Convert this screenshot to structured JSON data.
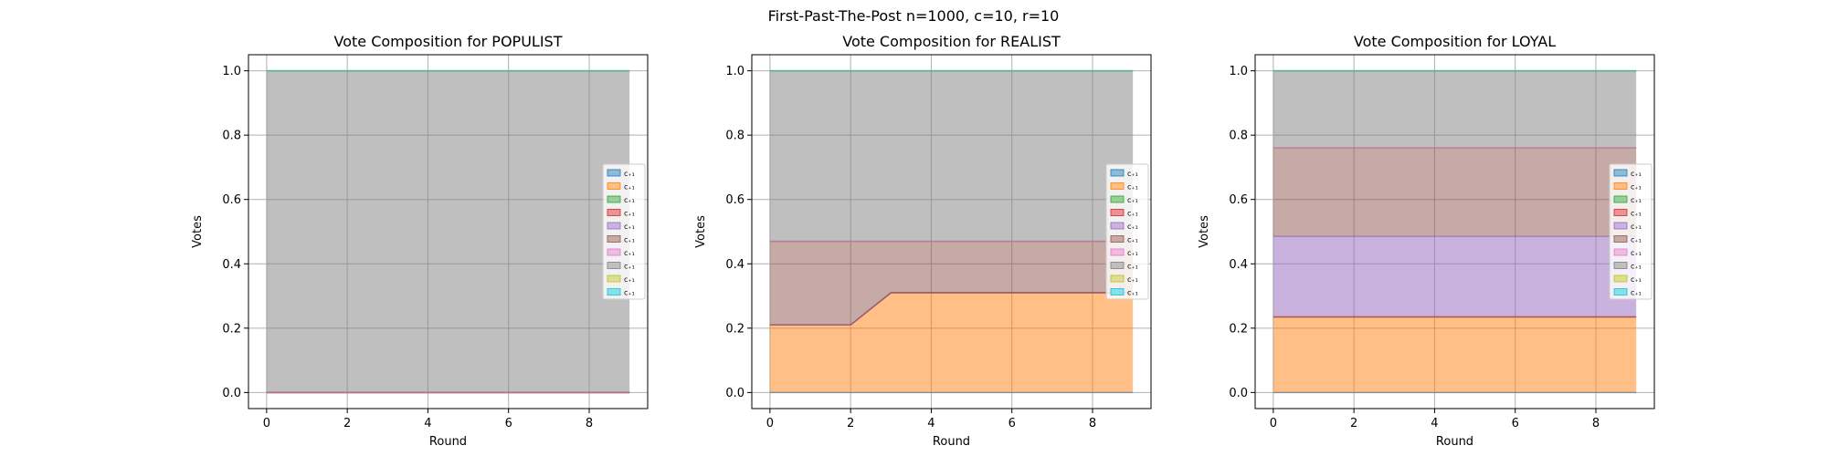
{
  "figure": {
    "suptitle": "First-Past-The-Post n=1000, c=10, r=10"
  },
  "legend_labels": [
    "c₊₁",
    "c₊₁",
    "c₊₁",
    "c₊₁",
    "c₊₁",
    "c₊₁",
    "c₊₁",
    "c₊₁",
    "c₊₁",
    "c₊₁"
  ],
  "colors": [
    "#1f77b4",
    "#ff7f0e",
    "#2ca02c",
    "#d62728",
    "#9467bd",
    "#8c564b",
    "#e377c2",
    "#7f7f7f",
    "#bcbd22",
    "#17becf"
  ],
  "chart_data": [
    {
      "type": "area",
      "stacked": true,
      "title": "Vote Composition for POPULIST",
      "xlabel": "Round",
      "ylabel": "Votes",
      "xlim": [
        -0.45,
        9.45
      ],
      "ylim": [
        -0.05,
        1.05
      ],
      "xticks": [
        "0",
        "2",
        "4",
        "6",
        "8"
      ],
      "yticks": [
        "0.0",
        "0.2",
        "0.4",
        "0.6",
        "0.8",
        "1.0"
      ],
      "grid": true,
      "legend": "center-right",
      "x": [
        0,
        1,
        2,
        3,
        4,
        5,
        6,
        7,
        8,
        9
      ],
      "series": [
        {
          "values": [
            0,
            0,
            0,
            0,
            0,
            0,
            0,
            0,
            0,
            0
          ]
        },
        {
          "values": [
            0,
            0,
            0,
            0,
            0,
            0,
            0,
            0,
            0,
            0
          ]
        },
        {
          "values": [
            0,
            0,
            0,
            0,
            0,
            0,
            0,
            0,
            0,
            0
          ]
        },
        {
          "values": [
            0,
            0,
            0,
            0,
            0,
            0,
            0,
            0,
            0,
            0
          ]
        },
        {
          "values": [
            0,
            0,
            0,
            0,
            0,
            0,
            0,
            0,
            0,
            0
          ]
        },
        {
          "values": [
            0,
            0,
            0,
            0,
            0,
            0,
            0,
            0,
            0,
            0
          ]
        },
        {
          "values": [
            0,
            0,
            0,
            0,
            0,
            0,
            0,
            0,
            0,
            0
          ]
        },
        {
          "values": [
            1,
            1,
            1,
            1,
            1,
            1,
            1,
            1,
            1,
            1
          ]
        },
        {
          "values": [
            0,
            0,
            0,
            0,
            0,
            0,
            0,
            0,
            0,
            0
          ]
        },
        {
          "values": [
            0,
            0,
            0,
            0,
            0,
            0,
            0,
            0,
            0,
            0
          ]
        }
      ]
    },
    {
      "type": "area",
      "stacked": true,
      "title": "Vote Composition for REALIST",
      "xlabel": "Round",
      "ylabel": "Votes",
      "xlim": [
        -0.45,
        9.45
      ],
      "ylim": [
        -0.05,
        1.05
      ],
      "xticks": [
        "0",
        "2",
        "4",
        "6",
        "8"
      ],
      "yticks": [
        "0.0",
        "0.2",
        "0.4",
        "0.6",
        "0.8",
        "1.0"
      ],
      "grid": true,
      "legend": "center-right",
      "x": [
        0,
        1,
        2,
        3,
        4,
        5,
        6,
        7,
        8,
        9
      ],
      "series": [
        {
          "values": [
            0,
            0,
            0,
            0,
            0,
            0,
            0,
            0,
            0,
            0
          ]
        },
        {
          "values": [
            0.21,
            0.21,
            0.21,
            0.31,
            0.31,
            0.31,
            0.31,
            0.31,
            0.31,
            0.31
          ]
        },
        {
          "values": [
            0,
            0,
            0,
            0,
            0,
            0,
            0,
            0,
            0,
            0
          ]
        },
        {
          "values": [
            0,
            0,
            0,
            0,
            0,
            0,
            0,
            0,
            0,
            0
          ]
        },
        {
          "values": [
            0,
            0,
            0,
            0,
            0,
            0,
            0,
            0,
            0,
            0
          ]
        },
        {
          "values": [
            0.26,
            0.26,
            0.26,
            0.16,
            0.16,
            0.16,
            0.16,
            0.16,
            0.16,
            0.16
          ]
        },
        {
          "values": [
            0,
            0,
            0,
            0,
            0,
            0,
            0,
            0,
            0,
            0
          ]
        },
        {
          "values": [
            0.53,
            0.53,
            0.53,
            0.53,
            0.53,
            0.53,
            0.53,
            0.53,
            0.53,
            0.53
          ]
        },
        {
          "values": [
            0,
            0,
            0,
            0,
            0,
            0,
            0,
            0,
            0,
            0
          ]
        },
        {
          "values": [
            0,
            0,
            0,
            0,
            0,
            0,
            0,
            0,
            0,
            0
          ]
        }
      ]
    },
    {
      "type": "area",
      "stacked": true,
      "title": "Vote Composition for LOYAL",
      "xlabel": "Round",
      "ylabel": "Votes",
      "xlim": [
        -0.45,
        9.45
      ],
      "ylim": [
        -0.05,
        1.05
      ],
      "xticks": [
        "0",
        "2",
        "4",
        "6",
        "8"
      ],
      "yticks": [
        "0.0",
        "0.2",
        "0.4",
        "0.6",
        "0.8",
        "1.0"
      ],
      "grid": true,
      "legend": "center-right",
      "x": [
        0,
        1,
        2,
        3,
        4,
        5,
        6,
        7,
        8,
        9
      ],
      "series": [
        {
          "values": [
            0,
            0,
            0,
            0,
            0,
            0,
            0,
            0,
            0,
            0
          ]
        },
        {
          "values": [
            0.235,
            0.235,
            0.235,
            0.235,
            0.235,
            0.235,
            0.235,
            0.235,
            0.235,
            0.235
          ]
        },
        {
          "values": [
            0,
            0,
            0,
            0,
            0,
            0,
            0,
            0,
            0,
            0
          ]
        },
        {
          "values": [
            0,
            0,
            0,
            0,
            0,
            0,
            0,
            0,
            0,
            0
          ]
        },
        {
          "values": [
            0.25,
            0.25,
            0.25,
            0.25,
            0.25,
            0.25,
            0.25,
            0.25,
            0.25,
            0.25
          ]
        },
        {
          "values": [
            0.275,
            0.275,
            0.275,
            0.275,
            0.275,
            0.275,
            0.275,
            0.275,
            0.275,
            0.275
          ]
        },
        {
          "values": [
            0,
            0,
            0,
            0,
            0,
            0,
            0,
            0,
            0,
            0
          ]
        },
        {
          "values": [
            0.24,
            0.24,
            0.24,
            0.24,
            0.24,
            0.24,
            0.24,
            0.24,
            0.24,
            0.24
          ]
        },
        {
          "values": [
            0,
            0,
            0,
            0,
            0,
            0,
            0,
            0,
            0,
            0
          ]
        },
        {
          "values": [
            0,
            0,
            0,
            0,
            0,
            0,
            0,
            0,
            0,
            0
          ]
        }
      ]
    }
  ]
}
